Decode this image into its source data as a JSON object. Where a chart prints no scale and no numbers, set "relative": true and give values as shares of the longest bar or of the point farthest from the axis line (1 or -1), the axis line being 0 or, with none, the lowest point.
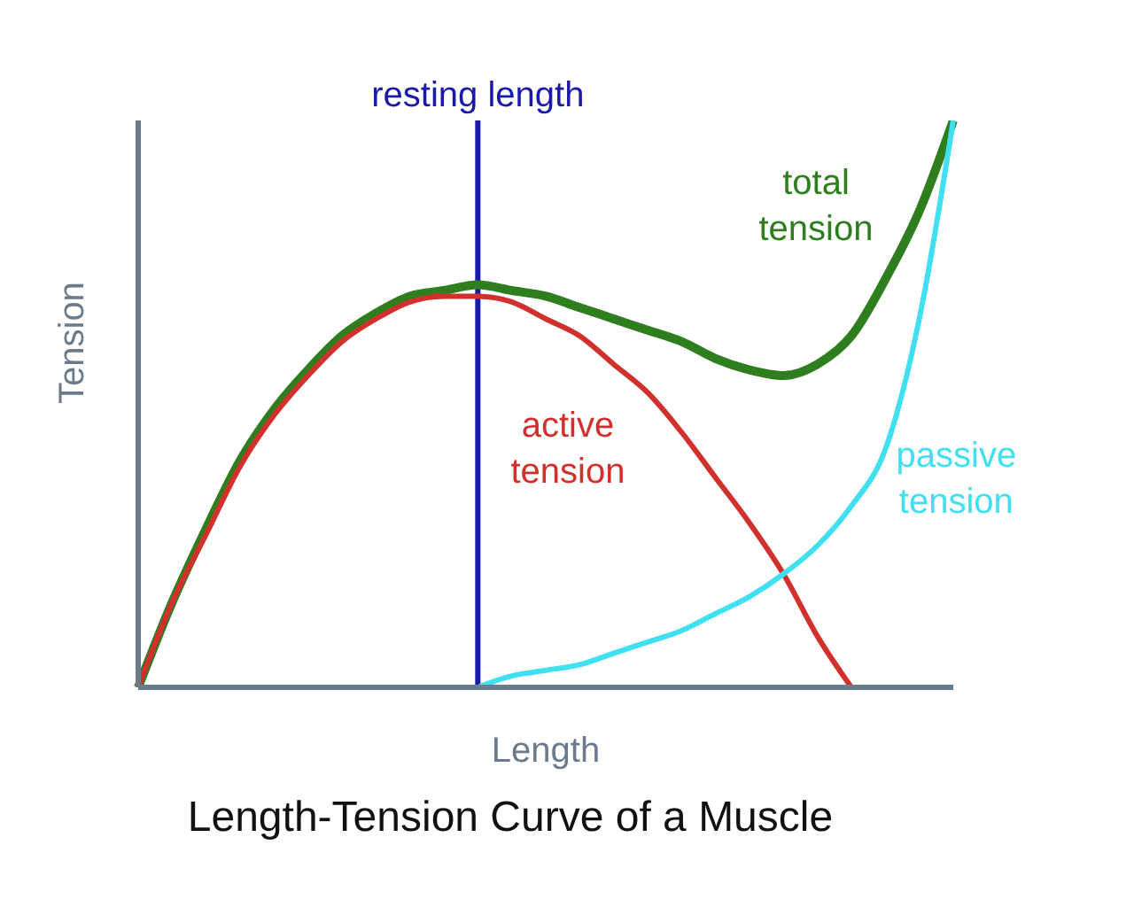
{
  "chart_data": {
    "type": "line",
    "title": "Length-Tension Curve of a Muscle",
    "xlabel": "Length",
    "ylabel": "Tension",
    "relative": true,
    "marker": "none",
    "annotations": [
      "resting length"
    ],
    "categories": [
      null,
      null,
      null,
      null,
      null,
      null,
      null,
      null,
      null,
      null,
      null,
      null,
      null,
      null,
      null,
      null,
      null,
      null,
      null,
      null,
      null,
      null,
      null,
      null,
      null
    ],
    "series": [
      {
        "name": "total tension",
        "color": "#2e7d1e",
        "values": [
          0,
          0.15,
          0.28,
          0.4,
          0.49,
          0.56,
          0.62,
          0.66,
          0.69,
          0.7,
          0.71,
          0.7,
          0.69,
          0.67,
          0.65,
          0.63,
          0.61,
          0.58,
          0.56,
          0.55,
          0.57,
          0.62,
          0.72,
          0.84,
          1
        ]
      },
      {
        "name": "active tension",
        "color": "#d0312d",
        "values": [
          0,
          0.15,
          0.27,
          0.39,
          0.48,
          0.55,
          0.61,
          0.65,
          0.68,
          0.69,
          0.69,
          0.68,
          0.65,
          0.62,
          0.57,
          0.52,
          0.45,
          0.37,
          0.29,
          0.2,
          0.09,
          0,
          null,
          null,
          null
        ]
      },
      {
        "name": "passive tension",
        "color": "#40e0f0",
        "values": [
          null,
          null,
          null,
          null,
          null,
          null,
          null,
          null,
          null,
          null,
          0,
          0.02,
          0.03,
          0.04,
          0.06,
          0.08,
          0.1,
          0.13,
          0.16,
          0.2,
          0.25,
          0.32,
          0.42,
          0.65,
          1
        ]
      }
    ]
  }
}
